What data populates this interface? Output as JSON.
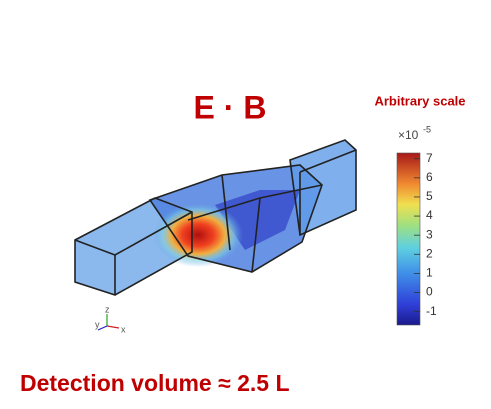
{
  "title": "E · B",
  "caption": "Detection volume ≈ 2.5 L",
  "colorbar": {
    "label": "Arbitrary scale",
    "multiplier": "×10",
    "exponent": "-5",
    "lim": [
      -1.7,
      7.3
    ],
    "ticks": [
      7,
      6,
      5,
      4,
      3,
      2,
      1,
      0,
      -1
    ]
  },
  "axes_triad": {
    "y": "y",
    "z": "z",
    "x": "x"
  }
}
